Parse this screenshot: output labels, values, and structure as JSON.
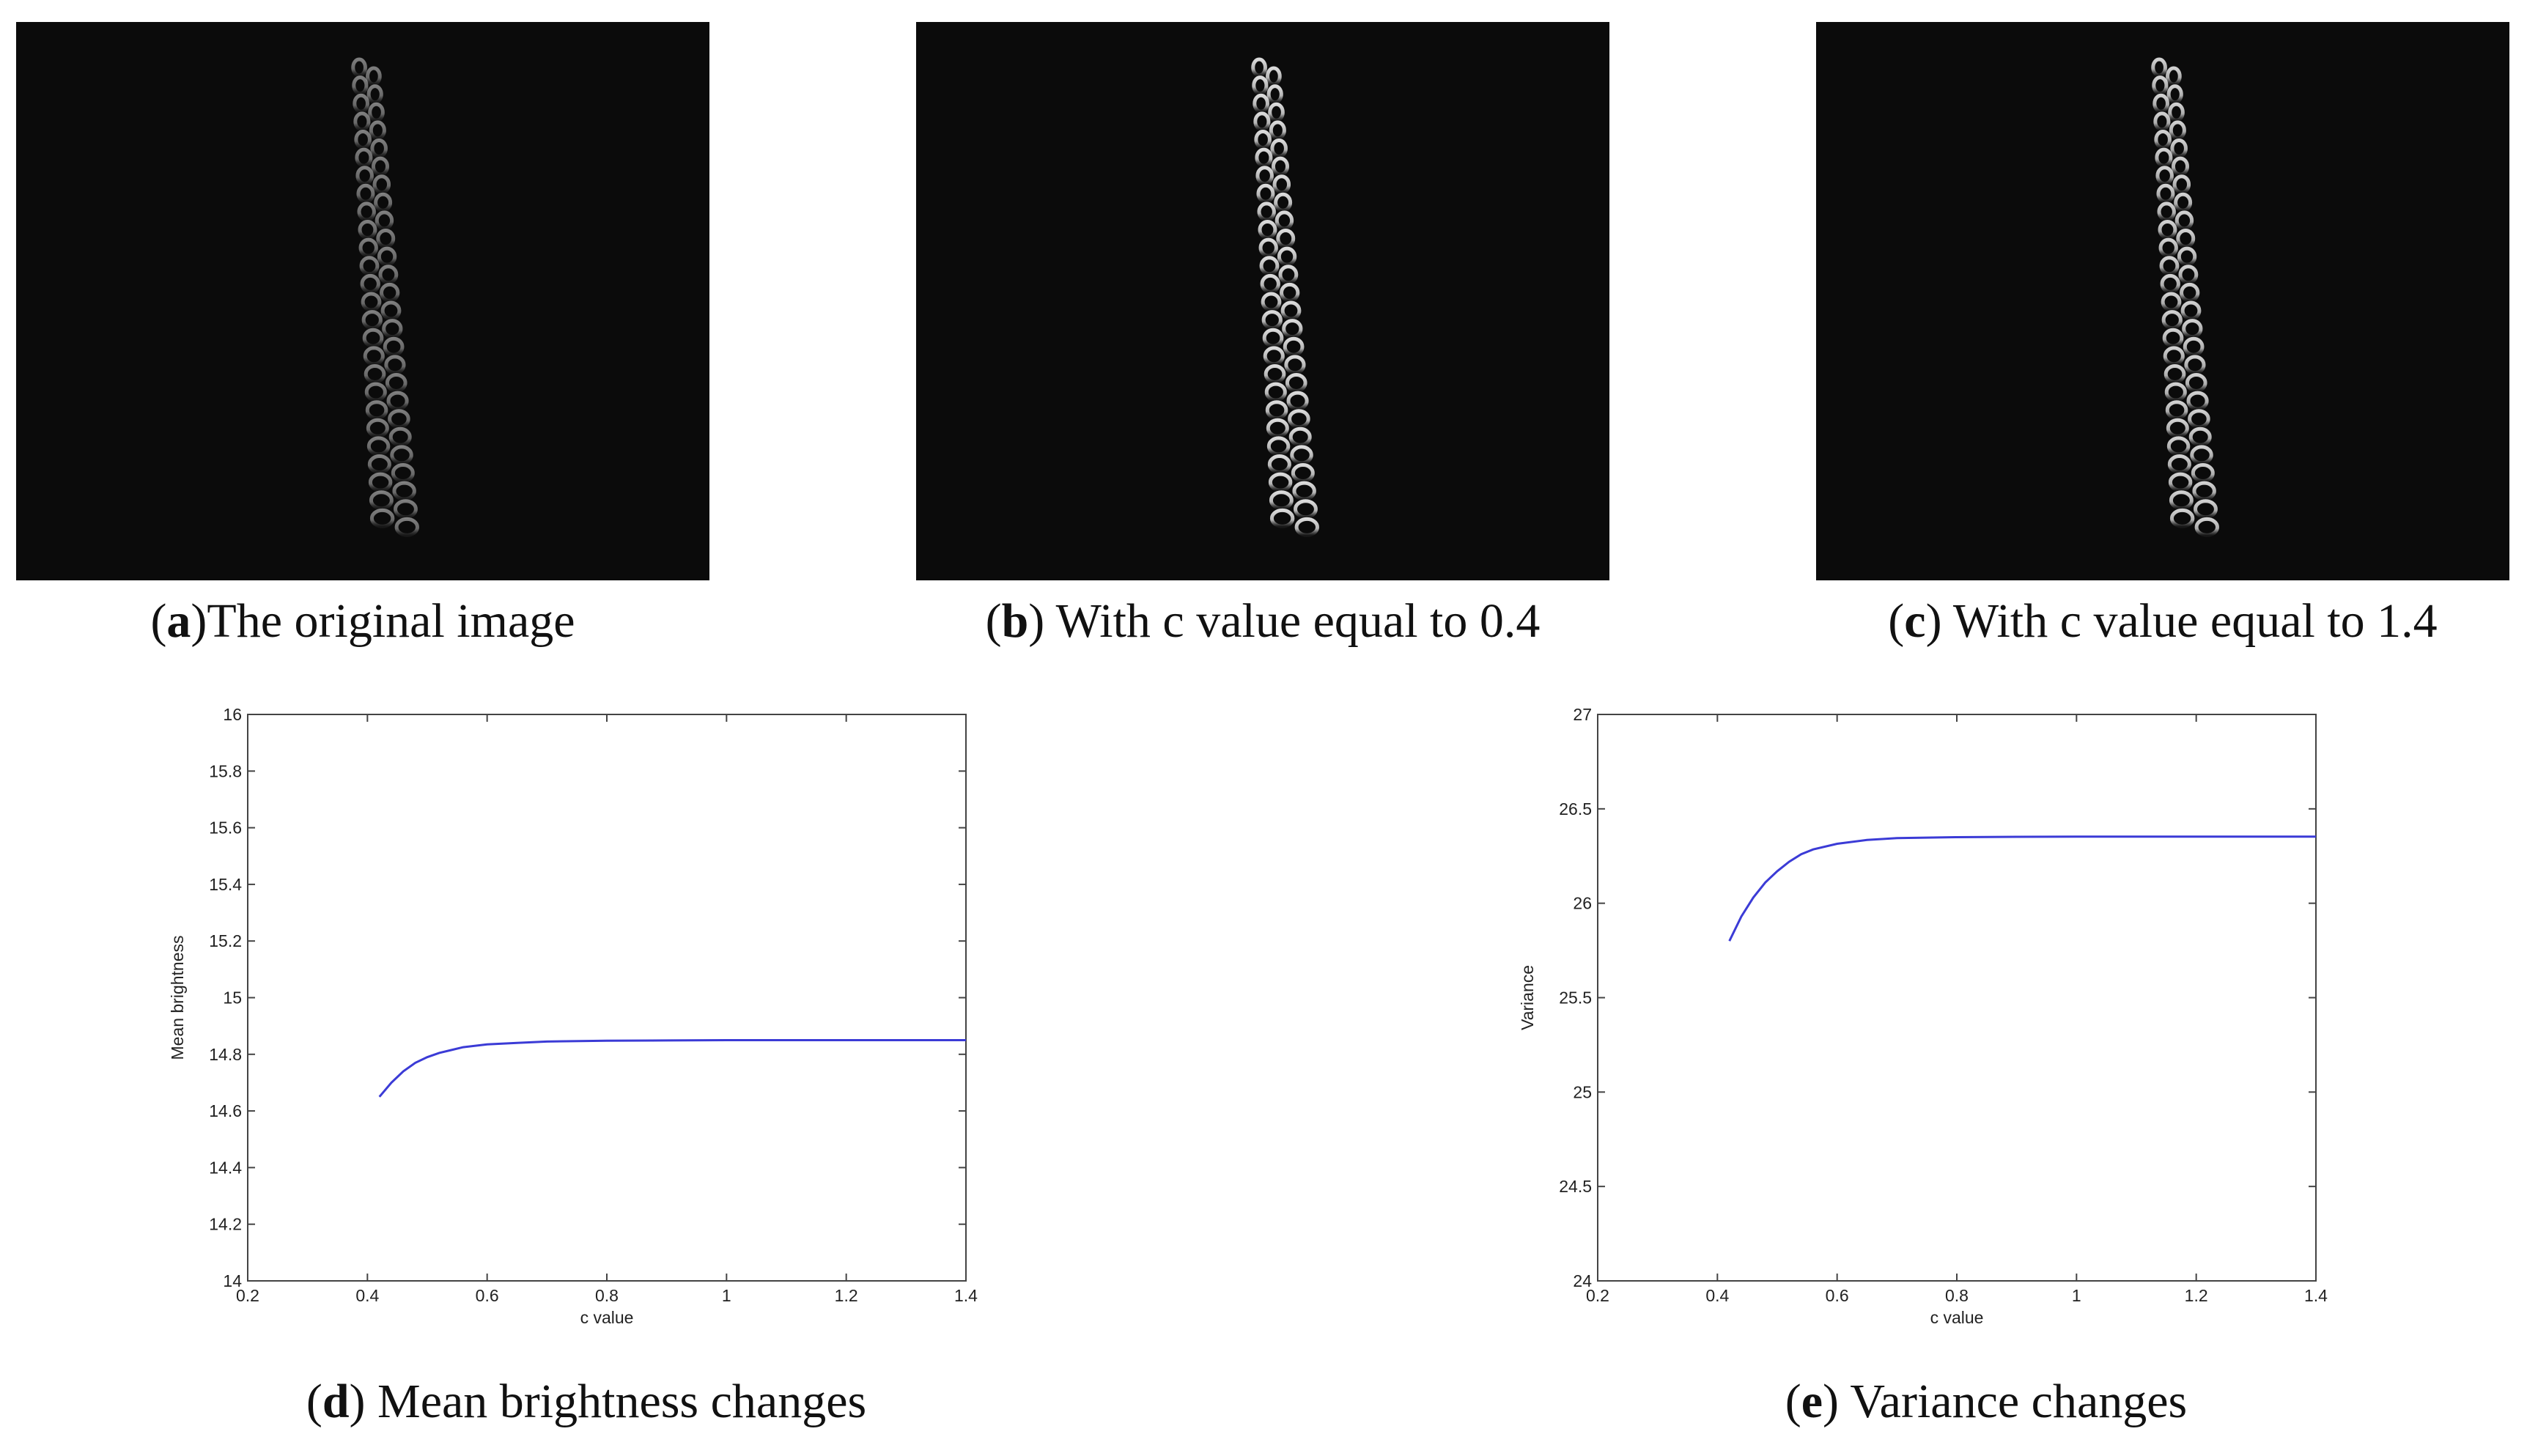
{
  "panels": [
    {
      "letter": "a",
      "text": "The original image",
      "intensity": 0.55
    },
    {
      "letter": "b",
      "text": " With c value equal to 0.4",
      "intensity": 1.0
    },
    {
      "letter": "c",
      "text": " With c value equal to 1.4",
      "intensity": 0.95
    }
  ],
  "chart_data": [
    {
      "type": "line",
      "caption_letter": "d",
      "caption_text": " Mean brightness changes",
      "xlabel": "c value",
      "ylabel": "Mean brightness",
      "xlim": [
        0.2,
        1.4
      ],
      "ylim": [
        14,
        16
      ],
      "xticks": [
        "0.2",
        "0.4",
        "0.6",
        "0.8",
        "1",
        "1.2",
        "1.4"
      ],
      "yticks": [
        "14",
        "14.2",
        "14.4",
        "14.6",
        "14.8",
        "15",
        "15.2",
        "15.4",
        "15.6",
        "15.8",
        "16"
      ],
      "grid": false,
      "series": [
        {
          "color": "#3b3bd6",
          "x": [
            0.42,
            0.44,
            0.46,
            0.48,
            0.5,
            0.52,
            0.54,
            0.56,
            0.6,
            0.65,
            0.7,
            0.8,
            0.9,
            1.0,
            1.2,
            1.4
          ],
          "y": [
            14.65,
            14.7,
            14.74,
            14.77,
            14.79,
            14.805,
            14.815,
            14.825,
            14.835,
            14.84,
            14.845,
            14.848,
            14.849,
            14.85,
            14.85,
            14.85
          ]
        }
      ]
    },
    {
      "type": "line",
      "caption_letter": "e",
      "caption_text": " Variance changes",
      "xlabel": "c value",
      "ylabel": "Variance",
      "xlim": [
        0.2,
        1.4
      ],
      "ylim": [
        24,
        27
      ],
      "xticks": [
        "0.2",
        "0.4",
        "0.6",
        "0.8",
        "1",
        "1.2",
        "1.4"
      ],
      "yticks": [
        "24",
        "24.5",
        "25",
        "25.5",
        "26",
        "26.5",
        "27"
      ],
      "grid": false,
      "series": [
        {
          "color": "#3b3bd6",
          "x": [
            0.42,
            0.44,
            0.46,
            0.48,
            0.5,
            0.52,
            0.54,
            0.56,
            0.6,
            0.65,
            0.7,
            0.8,
            0.9,
            1.0,
            1.2,
            1.4
          ],
          "y": [
            25.8,
            25.93,
            26.03,
            26.11,
            26.17,
            26.22,
            26.26,
            26.285,
            26.315,
            26.335,
            26.345,
            26.35,
            26.352,
            26.353,
            26.353,
            26.353
          ]
        }
      ]
    }
  ]
}
